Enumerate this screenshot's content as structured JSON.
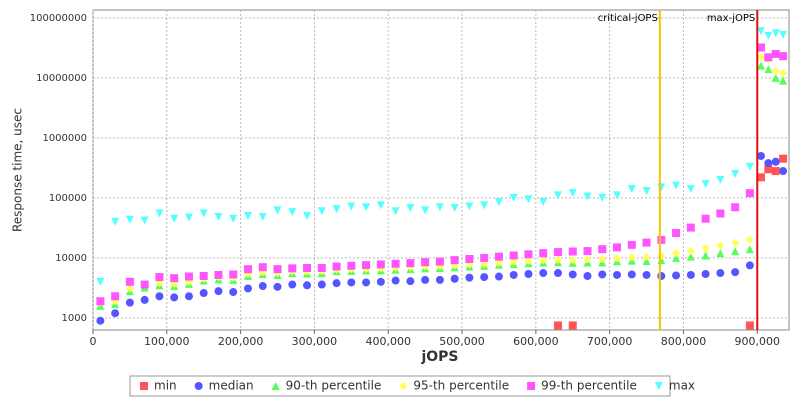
{
  "chart_data": {
    "type": "scatter",
    "x_label": "jOPS",
    "y_label": "Response time, usec",
    "log_y": true,
    "grid": true,
    "legend": "bottom",
    "xlim": [
      0,
      943000
    ],
    "ylim": [
      630,
      135000000
    ],
    "xticks": [
      {
        "value": 0,
        "label": "0"
      },
      {
        "value": 100000,
        "label": "100,000"
      },
      {
        "value": 200000,
        "label": "200,000"
      },
      {
        "value": 300000,
        "label": "300,000"
      },
      {
        "value": 400000,
        "label": "400,000"
      },
      {
        "value": 500000,
        "label": "500,000"
      },
      {
        "value": 600000,
        "label": "600,000"
      },
      {
        "value": 700000,
        "label": "700,000"
      },
      {
        "value": 800000,
        "label": "800,000"
      },
      {
        "value": 900000,
        "label": "900,000"
      }
    ],
    "yticks": [
      1000,
      10000,
      100000,
      1000000,
      10000000,
      100000000
    ],
    "annotations": [
      {
        "text": "critical-jOPS",
        "x": 768000,
        "color": "#f5c400"
      },
      {
        "text": "max-jOPS",
        "x": 900000,
        "color": "#dd1111"
      }
    ],
    "x": [
      10000,
      30000,
      50000,
      70000,
      90000,
      110000,
      130000,
      150000,
      170000,
      190000,
      210000,
      230000,
      250000,
      270000,
      290000,
      310000,
      330000,
      350000,
      370000,
      390000,
      410000,
      430000,
      450000,
      470000,
      490000,
      510000,
      530000,
      550000,
      570000,
      590000,
      610000,
      630000,
      650000,
      670000,
      690000,
      710000,
      730000,
      750000,
      770000,
      790000,
      810000,
      830000,
      850000,
      870000,
      890000,
      905000,
      915000,
      925000,
      935000
    ],
    "series": [
      {
        "name": "min",
        "color": "#ff5555",
        "marker": "square",
        "values": [
          null,
          null,
          null,
          null,
          null,
          null,
          null,
          null,
          null,
          null,
          null,
          null,
          null,
          null,
          null,
          null,
          null,
          null,
          null,
          null,
          null,
          null,
          null,
          null,
          null,
          null,
          null,
          null,
          null,
          null,
          null,
          750,
          750,
          null,
          null,
          null,
          null,
          null,
          null,
          null,
          null,
          null,
          null,
          null,
          750,
          220000,
          300000,
          280000,
          450000
        ]
      },
      {
        "name": "median",
        "color": "#5555ff",
        "marker": "circle",
        "values": [
          900,
          1200,
          1800,
          2000,
          2300,
          2200,
          2300,
          2600,
          2800,
          2700,
          3100,
          3400,
          3300,
          3600,
          3500,
          3600,
          3800,
          3900,
          3900,
          4000,
          4200,
          4100,
          4300,
          4300,
          4500,
          4700,
          4800,
          4900,
          5200,
          5400,
          5600,
          5600,
          5300,
          5000,
          5300,
          5200,
          5300,
          5200,
          5000,
          5100,
          5200,
          5400,
          5600,
          5800,
          7500,
          500000,
          380000,
          400000,
          280000
        ]
      },
      {
        "name": "90-th percentile",
        "color": "#55ff55",
        "marker": "triangle",
        "values": [
          1600,
          1700,
          2800,
          3200,
          3500,
          3400,
          3700,
          4200,
          4400,
          4300,
          5000,
          5400,
          5200,
          5600,
          5500,
          5600,
          6000,
          6100,
          6200,
          6200,
          6400,
          6500,
          6700,
          6800,
          7000,
          7200,
          7400,
          7700,
          7900,
          8200,
          8400,
          8500,
          8300,
          8400,
          8400,
          8800,
          9000,
          8900,
          9200,
          10000,
          10500,
          11000,
          12000,
          13000,
          14000,
          16000000,
          14000000,
          10000000,
          9000000
        ]
      },
      {
        "name": "95-th percentile",
        "color": "#ffff55",
        "marker": "diamond",
        "values": [
          1800,
          1900,
          3100,
          3500,
          3800,
          3700,
          4000,
          4500,
          4800,
          4700,
          5400,
          5800,
          5600,
          6000,
          5900,
          6000,
          6400,
          6500,
          6600,
          6700,
          6900,
          7000,
          7200,
          7300,
          7500,
          7800,
          8000,
          8300,
          8600,
          8900,
          9200,
          9300,
          9200,
          9400,
          9500,
          9900,
          10200,
          10400,
          10800,
          12000,
          13000,
          14500,
          16000,
          18000,
          20000,
          22000000,
          20000000,
          13000000,
          12000000
        ]
      },
      {
        "name": "99-th percentile",
        "color": "#ff55ff",
        "marker": "square",
        "values": [
          1900,
          2300,
          4000,
          3600,
          4800,
          4600,
          4900,
          5000,
          5200,
          5300,
          6500,
          7000,
          6500,
          6700,
          6800,
          6800,
          7200,
          7400,
          7600,
          7800,
          8000,
          8200,
          8500,
          8700,
          9200,
          9600,
          10000,
          10500,
          11000,
          11500,
          12000,
          12500,
          12800,
          13000,
          14000,
          15000,
          16500,
          18000,
          20000,
          26000,
          32000,
          45000,
          55000,
          70000,
          120000,
          32000000,
          22000000,
          25000000,
          23000000
        ]
      },
      {
        "name": "max",
        "color": "#55ffff",
        "marker": "triangle-down",
        "values": [
          4000,
          40000,
          43000,
          42000,
          55000,
          45000,
          47000,
          55000,
          48000,
          45000,
          50000,
          48000,
          62000,
          58000,
          50000,
          60000,
          65000,
          72000,
          70000,
          75000,
          60000,
          68000,
          62000,
          70000,
          68000,
          72000,
          75000,
          85000,
          100000,
          95000,
          85000,
          110000,
          120000,
          105000,
          100000,
          110000,
          140000,
          130000,
          150000,
          160000,
          140000,
          170000,
          200000,
          250000,
          330000,
          60000000,
          50000000,
          55000000,
          52000000
        ]
      }
    ]
  }
}
